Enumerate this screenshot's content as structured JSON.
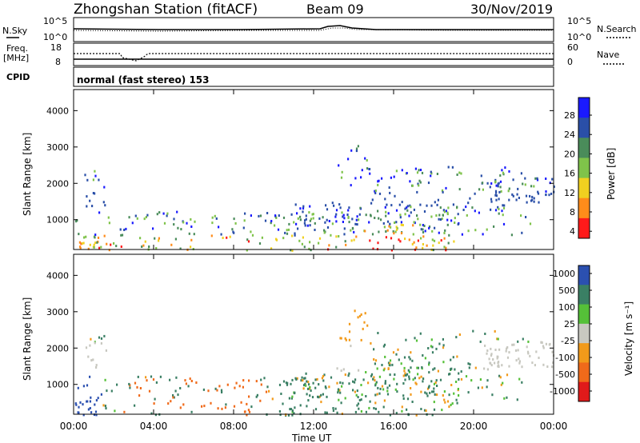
{
  "header": {
    "station": "Zhongshan Station (fitACF)",
    "beam": "Beam 09",
    "date": "30/Nov/2019"
  },
  "strips": {
    "nsky_label": "N.Sky",
    "nsky_ticks": [
      "10^5",
      "10^0"
    ],
    "nsearch_label": "N.Search",
    "nsearch_ticks": [
      "10^5",
      "10^0"
    ],
    "freq_label_1": "Freq.",
    "freq_label_2": "[MHz]",
    "freq_ticks": [
      "18",
      "8"
    ],
    "nave_label": "Nave",
    "nave_ticks": [
      "60",
      "0"
    ],
    "cpid_label": "CPID",
    "cpid_value": "normal (fast stereo) 153"
  },
  "chart_data": [
    {
      "type": "heatmap",
      "panel": "power",
      "ylabel": "Slant Range [km]",
      "y_ticks": [
        "4000",
        "3000",
        "2000",
        "1000"
      ],
      "ylim": [
        180,
        4580
      ],
      "colorbar_label": "Power [dB]",
      "colorbar_ticks": [
        "28",
        "24",
        "20",
        "16",
        "12",
        "8",
        "4"
      ],
      "colorscale": [
        "#1a1aff",
        "#2a4fa8",
        "#4a8c5a",
        "#7fc34a",
        "#f0d020",
        "#ff8c1a",
        "#ff1a1a"
      ]
    },
    {
      "type": "heatmap",
      "panel": "velocity",
      "ylabel": "Slant Range [km]",
      "y_ticks": [
        "4000",
        "3000",
        "2000",
        "1000"
      ],
      "ylim": [
        180,
        4580
      ],
      "colorbar_label": "Velocity [m s⁻¹]",
      "colorbar_ticks": [
        "1000",
        "500",
        "100",
        "25",
        "-25",
        "-100",
        "-500",
        "-1000"
      ],
      "colorscale": [
        "#2b50b0",
        "#3a7f64",
        "#55c038",
        "#c8c8c0",
        "#f29a1a",
        "#f06a1a",
        "#e01a1a"
      ]
    }
  ],
  "time_axis": {
    "label": "Time UT",
    "ticks": [
      "00:00",
      "04:00",
      "08:00",
      "12:00",
      "16:00",
      "20:00",
      "00:00"
    ]
  }
}
